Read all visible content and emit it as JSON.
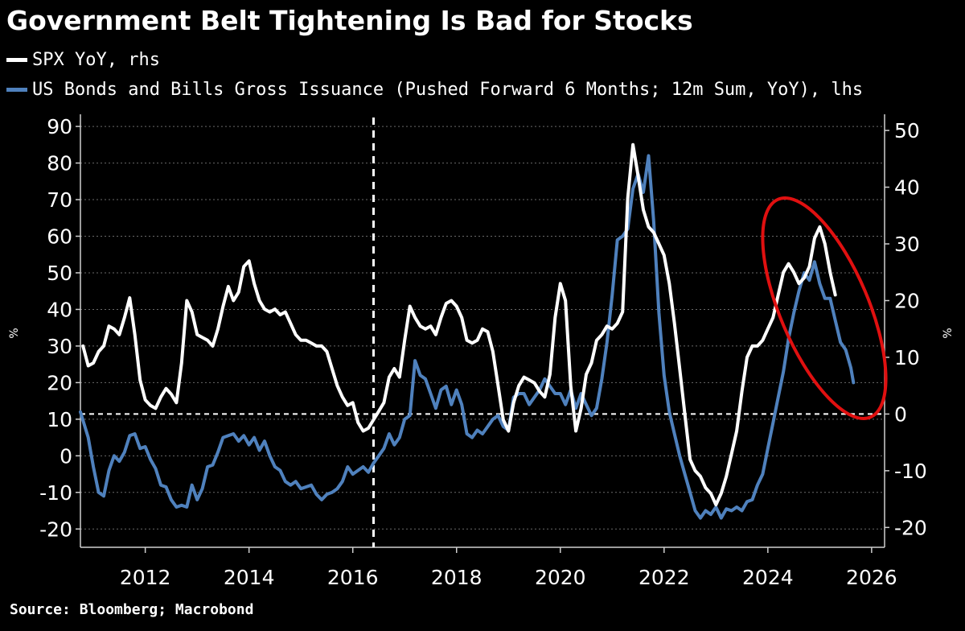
{
  "title": "Government Belt Tightening Is Bad for Stocks",
  "source": "Source: Bloomberg; Macrobond",
  "colors": {
    "background": "#000000",
    "spx": "#ffffff",
    "issuance": "#4f81bd",
    "annotation": "#e01010",
    "grid": "#6a6a6a"
  },
  "chart_data": {
    "type": "line",
    "x_range": [
      2010.75,
      2026.25
    ],
    "x_ticks": [
      "2012",
      "2014",
      "2016",
      "2018",
      "2020",
      "2022",
      "2024",
      "2026"
    ],
    "left_axis": {
      "label": "%",
      "ylim": [
        -25,
        92
      ],
      "ticks": [
        "90",
        "80",
        "70",
        "60",
        "50",
        "40",
        "30",
        "20",
        "10",
        "0",
        "-10",
        "-20"
      ]
    },
    "right_axis": {
      "label": "%",
      "ylim": [
        -23.5,
        52
      ],
      "ticks": [
        "50",
        "40",
        "30",
        "20",
        "10",
        "0",
        "-10",
        "-20"
      ]
    },
    "reference_lines": {
      "vertical_x": 2016.4,
      "horizontal_right_y": 0
    },
    "annotation": "red ellipse circling 2024–2025 peaks",
    "series": [
      {
        "name": "SPX YoY, rhs",
        "axis": "right",
        "color": "#ffffff",
        "points": [
          [
            2010.8,
            12
          ],
          [
            2010.9,
            8.5
          ],
          [
            2011.0,
            9
          ],
          [
            2011.1,
            11
          ],
          [
            2011.2,
            12
          ],
          [
            2011.3,
            15.5
          ],
          [
            2011.4,
            15
          ],
          [
            2011.5,
            14
          ],
          [
            2011.6,
            17
          ],
          [
            2011.7,
            20.5
          ],
          [
            2011.8,
            14
          ],
          [
            2011.9,
            6
          ],
          [
            2012.0,
            2.5
          ],
          [
            2012.1,
            1.5
          ],
          [
            2012.2,
            1
          ],
          [
            2012.3,
            3
          ],
          [
            2012.4,
            4.5
          ],
          [
            2012.5,
            3.5
          ],
          [
            2012.6,
            2
          ],
          [
            2012.7,
            9
          ],
          [
            2012.8,
            20
          ],
          [
            2012.9,
            18
          ],
          [
            2013.0,
            14
          ],
          [
            2013.2,
            13
          ],
          [
            2013.3,
            12
          ],
          [
            2013.4,
            15
          ],
          [
            2013.5,
            19
          ],
          [
            2013.6,
            22.5
          ],
          [
            2013.7,
            20
          ],
          [
            2013.8,
            21.5
          ],
          [
            2013.9,
            26
          ],
          [
            2014.0,
            27
          ],
          [
            2014.1,
            23
          ],
          [
            2014.2,
            20
          ],
          [
            2014.3,
            18.5
          ],
          [
            2014.4,
            18
          ],
          [
            2014.5,
            18.5
          ],
          [
            2014.6,
            17.5
          ],
          [
            2014.7,
            18
          ],
          [
            2014.8,
            16
          ],
          [
            2014.9,
            14
          ],
          [
            2015.0,
            13
          ],
          [
            2015.1,
            13
          ],
          [
            2015.2,
            12.5
          ],
          [
            2015.3,
            12
          ],
          [
            2015.4,
            12
          ],
          [
            2015.5,
            11
          ],
          [
            2015.6,
            8
          ],
          [
            2015.7,
            5
          ],
          [
            2015.8,
            3
          ],
          [
            2015.9,
            1.5
          ],
          [
            2016.0,
            2
          ],
          [
            2016.1,
            -1.5
          ],
          [
            2016.2,
            -3
          ],
          [
            2016.3,
            -2.5
          ],
          [
            2016.4,
            -1
          ],
          [
            2016.5,
            0.5
          ],
          [
            2016.6,
            2
          ],
          [
            2016.7,
            6.5
          ],
          [
            2016.8,
            8
          ],
          [
            2016.9,
            6.5
          ],
          [
            2017.0,
            13
          ],
          [
            2017.1,
            19
          ],
          [
            2017.2,
            17
          ],
          [
            2017.3,
            15.5
          ],
          [
            2017.4,
            15
          ],
          [
            2017.5,
            15.5
          ],
          [
            2017.6,
            14
          ],
          [
            2017.7,
            17
          ],
          [
            2017.8,
            19.5
          ],
          [
            2017.9,
            20
          ],
          [
            2018.0,
            19
          ],
          [
            2018.1,
            17
          ],
          [
            2018.2,
            13
          ],
          [
            2018.3,
            12.5
          ],
          [
            2018.4,
            13
          ],
          [
            2018.5,
            15
          ],
          [
            2018.6,
            14.5
          ],
          [
            2018.7,
            11
          ],
          [
            2018.8,
            5
          ],
          [
            2018.9,
            -1
          ],
          [
            2019.0,
            -3
          ],
          [
            2019.1,
            2
          ],
          [
            2019.2,
            5
          ],
          [
            2019.3,
            6.5
          ],
          [
            2019.4,
            6
          ],
          [
            2019.5,
            5.5
          ],
          [
            2019.6,
            4
          ],
          [
            2019.7,
            3
          ],
          [
            2019.8,
            7
          ],
          [
            2019.9,
            17
          ],
          [
            2020.0,
            23
          ],
          [
            2020.1,
            20
          ],
          [
            2020.2,
            5
          ],
          [
            2020.3,
            -3
          ],
          [
            2020.4,
            1
          ],
          [
            2020.5,
            7
          ],
          [
            2020.6,
            9
          ],
          [
            2020.7,
            13
          ],
          [
            2020.8,
            14
          ],
          [
            2020.9,
            15.5
          ],
          [
            2021.0,
            15
          ],
          [
            2021.1,
            16
          ],
          [
            2021.2,
            18
          ],
          [
            2021.3,
            38
          ],
          [
            2021.4,
            47.5
          ],
          [
            2021.5,
            42
          ],
          [
            2021.6,
            36
          ],
          [
            2021.7,
            33
          ],
          [
            2021.8,
            32
          ],
          [
            2021.9,
            30
          ],
          [
            2022.0,
            28
          ],
          [
            2022.1,
            23
          ],
          [
            2022.2,
            16
          ],
          [
            2022.3,
            8
          ],
          [
            2022.4,
            0
          ],
          [
            2022.5,
            -8
          ],
          [
            2022.6,
            -10
          ],
          [
            2022.7,
            -11
          ],
          [
            2022.8,
            -13
          ],
          [
            2022.9,
            -14
          ],
          [
            2023.0,
            -16
          ],
          [
            2023.1,
            -14
          ],
          [
            2023.2,
            -11
          ],
          [
            2023.3,
            -7
          ],
          [
            2023.4,
            -3
          ],
          [
            2023.5,
            4
          ],
          [
            2023.6,
            10
          ],
          [
            2023.7,
            12
          ],
          [
            2023.8,
            12
          ],
          [
            2023.9,
            13
          ],
          [
            2024.0,
            15
          ],
          [
            2024.1,
            17
          ],
          [
            2024.2,
            21
          ],
          [
            2024.3,
            25
          ],
          [
            2024.4,
            26.5
          ],
          [
            2024.5,
            25
          ],
          [
            2024.6,
            23
          ],
          [
            2024.7,
            24
          ],
          [
            2024.8,
            26
          ],
          [
            2024.9,
            31
          ],
          [
            2025.0,
            33
          ],
          [
            2025.1,
            30
          ],
          [
            2025.2,
            25
          ],
          [
            2025.3,
            21
          ]
        ]
      },
      {
        "name": "US Bonds and Bills Gross Issuance (Pushed Forward 6 Months; 12m Sum, YoY), lhs",
        "axis": "left",
        "color": "#4f81bd",
        "points": [
          [
            2010.75,
            12
          ],
          [
            2010.9,
            5
          ],
          [
            2011.0,
            -3
          ],
          [
            2011.1,
            -10
          ],
          [
            2011.2,
            -11
          ],
          [
            2011.3,
            -4
          ],
          [
            2011.4,
            0
          ],
          [
            2011.5,
            -1.5
          ],
          [
            2011.6,
            1
          ],
          [
            2011.7,
            5.5
          ],
          [
            2011.8,
            6
          ],
          [
            2011.9,
            2
          ],
          [
            2012.0,
            2.5
          ],
          [
            2012.1,
            -1
          ],
          [
            2012.2,
            -3.5
          ],
          [
            2012.3,
            -8
          ],
          [
            2012.4,
            -8.5
          ],
          [
            2012.5,
            -12
          ],
          [
            2012.6,
            -14
          ],
          [
            2012.7,
            -13.5
          ],
          [
            2012.8,
            -14
          ],
          [
            2012.9,
            -8
          ],
          [
            2013.0,
            -12
          ],
          [
            2013.1,
            -9
          ],
          [
            2013.2,
            -3
          ],
          [
            2013.3,
            -2.5
          ],
          [
            2013.4,
            1
          ],
          [
            2013.5,
            5
          ],
          [
            2013.6,
            5.5
          ],
          [
            2013.7,
            6
          ],
          [
            2013.8,
            4
          ],
          [
            2013.9,
            5.5
          ],
          [
            2014.0,
            3
          ],
          [
            2014.1,
            5
          ],
          [
            2014.2,
            1.5
          ],
          [
            2014.3,
            4
          ],
          [
            2014.4,
            0
          ],
          [
            2014.5,
            -3
          ],
          [
            2014.6,
            -4
          ],
          [
            2014.7,
            -7
          ],
          [
            2014.8,
            -8
          ],
          [
            2014.9,
            -7
          ],
          [
            2015.0,
            -9
          ],
          [
            2015.1,
            -8.5
          ],
          [
            2015.2,
            -8
          ],
          [
            2015.3,
            -10.5
          ],
          [
            2015.4,
            -12
          ],
          [
            2015.5,
            -10.5
          ],
          [
            2015.6,
            -10
          ],
          [
            2015.7,
            -9
          ],
          [
            2015.8,
            -7
          ],
          [
            2015.9,
            -3
          ],
          [
            2016.0,
            -5
          ],
          [
            2016.1,
            -4
          ],
          [
            2016.2,
            -3
          ],
          [
            2016.3,
            -4.5
          ],
          [
            2016.4,
            -2
          ],
          [
            2016.5,
            0
          ],
          [
            2016.6,
            2
          ],
          [
            2016.7,
            6
          ],
          [
            2016.8,
            3
          ],
          [
            2016.9,
            5
          ],
          [
            2017.0,
            10
          ],
          [
            2017.1,
            11
          ],
          [
            2017.2,
            26
          ],
          [
            2017.3,
            22
          ],
          [
            2017.4,
            21
          ],
          [
            2017.5,
            17
          ],
          [
            2017.6,
            13
          ],
          [
            2017.7,
            18
          ],
          [
            2017.8,
            19
          ],
          [
            2017.9,
            14
          ],
          [
            2018.0,
            18
          ],
          [
            2018.1,
            14
          ],
          [
            2018.2,
            6
          ],
          [
            2018.3,
            5
          ],
          [
            2018.4,
            7
          ],
          [
            2018.5,
            6
          ],
          [
            2018.6,
            8
          ],
          [
            2018.7,
            10
          ],
          [
            2018.8,
            11
          ],
          [
            2018.9,
            8
          ],
          [
            2019.0,
            7
          ],
          [
            2019.1,
            16
          ],
          [
            2019.2,
            17
          ],
          [
            2019.3,
            17
          ],
          [
            2019.4,
            14
          ],
          [
            2019.5,
            16
          ],
          [
            2019.6,
            18
          ],
          [
            2019.7,
            21
          ],
          [
            2019.8,
            19
          ],
          [
            2019.9,
            17
          ],
          [
            2020.0,
            17
          ],
          [
            2020.1,
            14
          ],
          [
            2020.2,
            18
          ],
          [
            2020.3,
            13
          ],
          [
            2020.4,
            17
          ],
          [
            2020.5,
            14
          ],
          [
            2020.6,
            11
          ],
          [
            2020.7,
            13
          ],
          [
            2020.8,
            21
          ],
          [
            2020.9,
            31
          ],
          [
            2021.0,
            44
          ],
          [
            2021.1,
            59
          ],
          [
            2021.2,
            60
          ],
          [
            2021.3,
            62
          ],
          [
            2021.4,
            73
          ],
          [
            2021.5,
            77
          ],
          [
            2021.6,
            72
          ],
          [
            2021.7,
            82
          ],
          [
            2021.8,
            64
          ],
          [
            2021.9,
            39
          ],
          [
            2022.0,
            22
          ],
          [
            2022.1,
            12
          ],
          [
            2022.2,
            6
          ],
          [
            2022.3,
            0
          ],
          [
            2022.4,
            -5
          ],
          [
            2022.5,
            -10
          ],
          [
            2022.6,
            -15
          ],
          [
            2022.7,
            -17
          ],
          [
            2022.8,
            -15
          ],
          [
            2022.9,
            -16
          ],
          [
            2023.0,
            -14
          ],
          [
            2023.1,
            -17
          ],
          [
            2023.2,
            -14.5
          ],
          [
            2023.3,
            -15
          ],
          [
            2023.4,
            -14
          ],
          [
            2023.5,
            -15
          ],
          [
            2023.6,
            -12.5
          ],
          [
            2023.7,
            -12
          ],
          [
            2023.8,
            -8
          ],
          [
            2023.9,
            -5
          ],
          [
            2024.0,
            2
          ],
          [
            2024.1,
            9
          ],
          [
            2024.2,
            16
          ],
          [
            2024.3,
            23
          ],
          [
            2024.4,
            32
          ],
          [
            2024.5,
            39
          ],
          [
            2024.6,
            45
          ],
          [
            2024.7,
            50
          ],
          [
            2024.8,
            48
          ],
          [
            2024.9,
            53
          ],
          [
            2025.0,
            47
          ],
          [
            2025.1,
            43
          ],
          [
            2025.2,
            43
          ],
          [
            2025.3,
            37
          ],
          [
            2025.4,
            31
          ],
          [
            2025.5,
            29
          ],
          [
            2025.6,
            24
          ],
          [
            2025.65,
            20
          ]
        ]
      }
    ]
  }
}
